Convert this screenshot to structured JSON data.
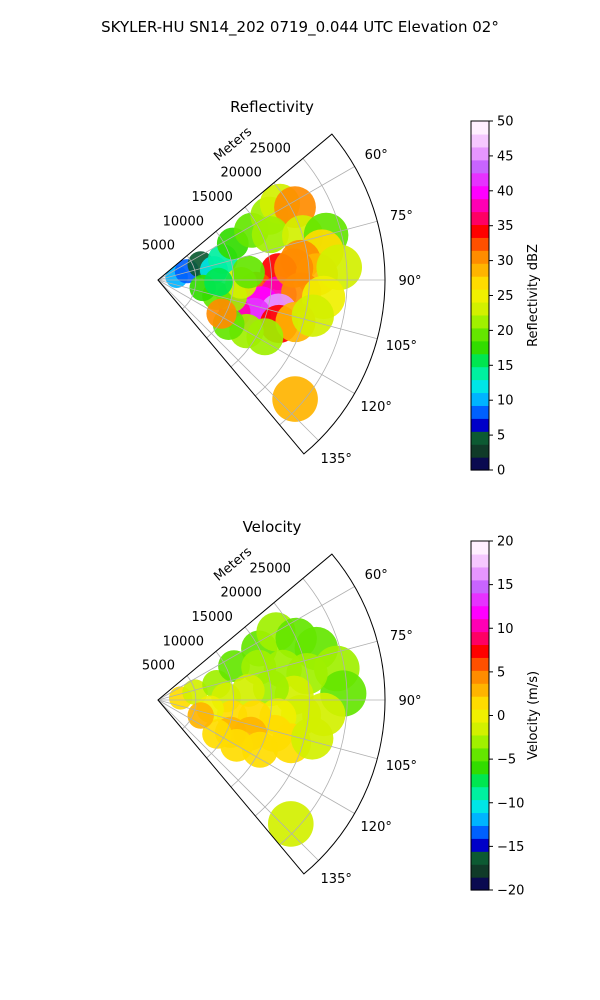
{
  "suptitle": "SKYLER-HU  SN14_202  0719_0.044 UTC Elevation 02°",
  "chart_data": [
    {
      "type": "heatmap",
      "title": "Reflectivity",
      "radial_axis_label": "Meters",
      "r_ticks": [
        5000,
        10000,
        15000,
        20000,
        25000
      ],
      "r_tick_labels": [
        "5000",
        "10000",
        "15000",
        "20000",
        "25000"
      ],
      "rlim": [
        0,
        30000
      ],
      "theta_range_deg": [
        50,
        140
      ],
      "theta_ticks": [
        60,
        75,
        90,
        105,
        120,
        135
      ],
      "theta_tick_labels": [
        "60°",
        "75°",
        "90°",
        "105°",
        "120°",
        "135°"
      ],
      "grid": true,
      "colorbar": {
        "label": "Reflectivity dBZ",
        "range": [
          0,
          50
        ],
        "ticks": [
          0,
          5,
          10,
          15,
          20,
          25,
          30,
          35,
          40,
          45,
          50
        ],
        "tick_labels": [
          "0",
          "5",
          "10",
          "15",
          "20",
          "25",
          "30",
          "35",
          "40",
          "45",
          "50"
        ],
        "colors": [
          "#0a0a50",
          "#103a28",
          "#0c5a32",
          "#0000c8",
          "#0060ff",
          "#00b4ff",
          "#00e6e6",
          "#00f0a0",
          "#00e650",
          "#32dc00",
          "#64e600",
          "#a0f000",
          "#d2f000",
          "#f0f000",
          "#ffdc00",
          "#ffb400",
          "#ff8c00",
          "#ff5000",
          "#ff0000",
          "#ff0064",
          "#ff00b4",
          "#ff00ff",
          "#e632ff",
          "#c864ff",
          "#e696ff",
          "#f5c8ff",
          "#fff0ff"
        ]
      },
      "cells": [
        {
          "r": 2500,
          "th": 80,
          "v": 10
        },
        {
          "r": 4000,
          "th": 73,
          "v": 8
        },
        {
          "r": 6000,
          "th": 70,
          "v": 5
        },
        {
          "r": 7500,
          "th": 80,
          "v": 12
        },
        {
          "r": 9000,
          "th": 72,
          "v": 14
        },
        {
          "r": 11000,
          "th": 64,
          "v": 18
        },
        {
          "r": 14000,
          "th": 62,
          "v": 20
        },
        {
          "r": 17000,
          "th": 60,
          "v": 22
        },
        {
          "r": 19000,
          "th": 58,
          "v": 24
        },
        {
          "r": 20500,
          "th": 62,
          "v": 30
        },
        {
          "r": 16000,
          "th": 68,
          "v": 21
        },
        {
          "r": 20000,
          "th": 73,
          "v": 24
        },
        {
          "r": 23000,
          "th": 75,
          "v": 20
        },
        {
          "r": 22000,
          "th": 80,
          "v": 26
        },
        {
          "r": 19000,
          "th": 82,
          "v": 30
        },
        {
          "r": 16000,
          "th": 86,
          "v": 34
        },
        {
          "r": 21000,
          "th": 88,
          "v": 28
        },
        {
          "r": 24000,
          "th": 86,
          "v": 24
        },
        {
          "r": 13000,
          "th": 95,
          "v": 33
        },
        {
          "r": 16000,
          "th": 97,
          "v": 38
        },
        {
          "r": 19000,
          "th": 95,
          "v": 30
        },
        {
          "r": 22000,
          "th": 96,
          "v": 25
        },
        {
          "r": 14000,
          "th": 103,
          "v": 40
        },
        {
          "r": 16500,
          "th": 105,
          "v": 45
        },
        {
          "r": 13500,
          "th": 110,
          "v": 42
        },
        {
          "r": 11000,
          "th": 113,
          "v": 38
        },
        {
          "r": 17000,
          "th": 110,
          "v": 35
        },
        {
          "r": 19000,
          "th": 107,
          "v": 28
        },
        {
          "r": 10000,
          "th": 103,
          "v": 22
        },
        {
          "r": 8000,
          "th": 105,
          "v": 20
        },
        {
          "r": 6000,
          "th": 100,
          "v": 18
        },
        {
          "r": 11000,
          "th": 92,
          "v": 24
        },
        {
          "r": 8000,
          "th": 92,
          "v": 16
        },
        {
          "r": 13500,
          "th": 120,
          "v": 22
        },
        {
          "r": 16000,
          "th": 118,
          "v": 21
        },
        {
          "r": 11000,
          "th": 122,
          "v": 20
        },
        {
          "r": 24000,
          "th": 131,
          "v": 28
        },
        {
          "r": 18000,
          "th": 85,
          "v": 31
        },
        {
          "r": 12000,
          "th": 85,
          "v": 19
        },
        {
          "r": 21000,
          "th": 103,
          "v": 23
        },
        {
          "r": 9500,
          "th": 118,
          "v": 30
        }
      ]
    },
    {
      "type": "heatmap",
      "title": "Velocity",
      "radial_axis_label": "Meters",
      "r_ticks": [
        5000,
        10000,
        15000,
        20000,
        25000
      ],
      "r_tick_labels": [
        "5000",
        "10000",
        "15000",
        "20000",
        "25000"
      ],
      "rlim": [
        0,
        30000
      ],
      "theta_range_deg": [
        50,
        140
      ],
      "theta_ticks": [
        60,
        75,
        90,
        105,
        120,
        135
      ],
      "theta_tick_labels": [
        "60°",
        "75°",
        "90°",
        "105°",
        "120°",
        "135°"
      ],
      "grid": true,
      "colorbar": {
        "label": "Velocity (m/s)",
        "range": [
          -20,
          20
        ],
        "ticks": [
          -20,
          -15,
          -10,
          -5,
          0,
          5,
          10,
          15,
          20
        ],
        "tick_labels": [
          "−20",
          "−15",
          "−10",
          "−5",
          "0",
          "5",
          "10",
          "15",
          "20"
        ],
        "colors": [
          "#0a0a50",
          "#103a28",
          "#0c5a32",
          "#0000c8",
          "#0060ff",
          "#00b4ff",
          "#00e6e6",
          "#00f0a0",
          "#00e650",
          "#32dc00",
          "#64e600",
          "#a0f000",
          "#d2f000",
          "#f0f000",
          "#ffdc00",
          "#ffb400",
          "#ff8c00",
          "#ff5000",
          "#ff0000",
          "#ff0064",
          "#ff00b4",
          "#ff00ff",
          "#e632ff",
          "#c864ff",
          "#e696ff",
          "#f5c8ff",
          "#fff0ff"
        ]
      },
      "cells": [
        {
          "r": 3000,
          "th": 85,
          "v": 1
        },
        {
          "r": 5000,
          "th": 78,
          "v": -2
        },
        {
          "r": 8000,
          "th": 75,
          "v": -3
        },
        {
          "r": 11000,
          "th": 66,
          "v": -4
        },
        {
          "r": 15000,
          "th": 63,
          "v": -4
        },
        {
          "r": 18000,
          "th": 60,
          "v": -3
        },
        {
          "r": 20000,
          "th": 66,
          "v": -4
        },
        {
          "r": 22000,
          "th": 72,
          "v": -4
        },
        {
          "r": 24000,
          "th": 80,
          "v": -3
        },
        {
          "r": 24500,
          "th": 88,
          "v": -4
        },
        {
          "r": 20000,
          "th": 80,
          "v": -3
        },
        {
          "r": 17000,
          "th": 76,
          "v": -3
        },
        {
          "r": 14000,
          "th": 72,
          "v": -3
        },
        {
          "r": 18000,
          "th": 88,
          "v": -2
        },
        {
          "r": 15000,
          "th": 84,
          "v": -3
        },
        {
          "r": 12000,
          "th": 84,
          "v": -2
        },
        {
          "r": 9000,
          "th": 88,
          "v": -1
        },
        {
          "r": 22000,
          "th": 95,
          "v": -2
        },
        {
          "r": 19000,
          "th": 96,
          "v": -1
        },
        {
          "r": 16000,
          "th": 98,
          "v": 0
        },
        {
          "r": 13000,
          "th": 100,
          "v": 1
        },
        {
          "r": 10000,
          "th": 102,
          "v": 1
        },
        {
          "r": 7000,
          "th": 100,
          "v": 0
        },
        {
          "r": 16000,
          "th": 106,
          "v": 2
        },
        {
          "r": 13000,
          "th": 110,
          "v": 3
        },
        {
          "r": 10500,
          "th": 114,
          "v": 3
        },
        {
          "r": 18500,
          "th": 108,
          "v": 2
        },
        {
          "r": 15000,
          "th": 116,
          "v": 2
        },
        {
          "r": 12000,
          "th": 120,
          "v": 2
        },
        {
          "r": 9000,
          "th": 120,
          "v": 1
        },
        {
          "r": 21000,
          "th": 104,
          "v": -1
        },
        {
          "r": 24000,
          "th": 133,
          "v": -2
        },
        {
          "r": 6000,
          "th": 110,
          "v": 3
        }
      ]
    }
  ]
}
